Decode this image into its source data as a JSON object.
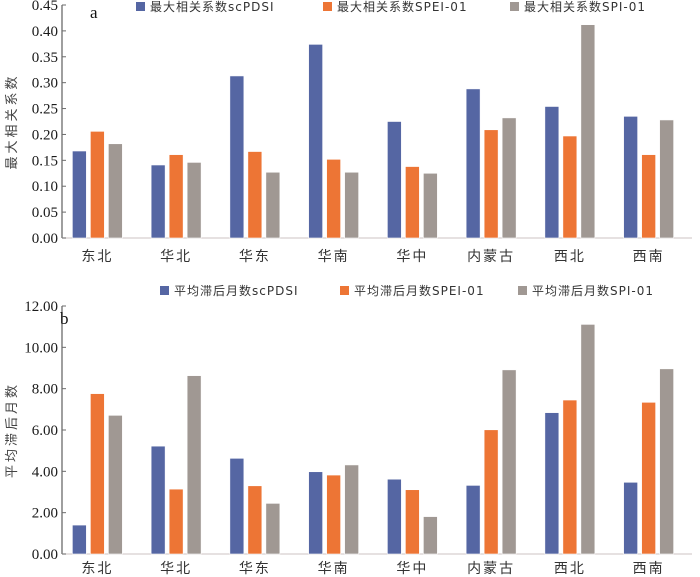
{
  "chart_data": [
    {
      "type": "bar",
      "panel_label": "a",
      "title": "",
      "xlabel": "",
      "ylabel": "最大相关系数",
      "ylim": [
        0,
        0.45
      ],
      "ytick_step": 0.05,
      "ytick_decimals": 2,
      "grid": false,
      "legend_position": "top",
      "categories": [
        "东北",
        "华北",
        "华东",
        "华南",
        "华中",
        "内蒙古",
        "西北",
        "西南"
      ],
      "series": [
        {
          "name": "最大相关系数scPDSI",
          "color": "#5566A3",
          "values": [
            0.168,
            0.141,
            0.313,
            0.374,
            0.225,
            0.288,
            0.254,
            0.235
          ]
        },
        {
          "name": "最大相关系数SPEI-01",
          "color": "#ED7535",
          "values": [
            0.206,
            0.161,
            0.167,
            0.152,
            0.138,
            0.209,
            0.197,
            0.161
          ]
        },
        {
          "name": "最大相关系数SPI-01",
          "color": "#A09893",
          "values": [
            0.182,
            0.146,
            0.127,
            0.127,
            0.125,
            0.232,
            0.412,
            0.228
          ]
        }
      ]
    },
    {
      "type": "bar",
      "panel_label": "b",
      "title": "",
      "xlabel": "",
      "ylabel": "平均滞后月数",
      "ylim": [
        0,
        12
      ],
      "ytick_step": 2,
      "ytick_decimals": 2,
      "grid": false,
      "legend_position": "top",
      "categories": [
        "东北",
        "华北",
        "华东",
        "华南",
        "华中",
        "内蒙古",
        "西北",
        "西南"
      ],
      "series": [
        {
          "name": "平均滞后月数scPDSI",
          "color": "#5566A3",
          "values": [
            1.4,
            5.22,
            4.63,
            3.98,
            3.62,
            3.32,
            6.84,
            3.47
          ]
        },
        {
          "name": "平均滞后月数SPEI-01",
          "color": "#ED7535",
          "values": [
            7.76,
            3.14,
            3.3,
            3.82,
            3.11,
            6.01,
            7.45,
            7.34
          ]
        },
        {
          "name": "平均滞后月数SPI-01",
          "color": "#A09893",
          "values": [
            6.71,
            8.63,
            2.45,
            4.31,
            1.81,
            8.91,
            11.11,
            8.96
          ]
        }
      ]
    }
  ]
}
